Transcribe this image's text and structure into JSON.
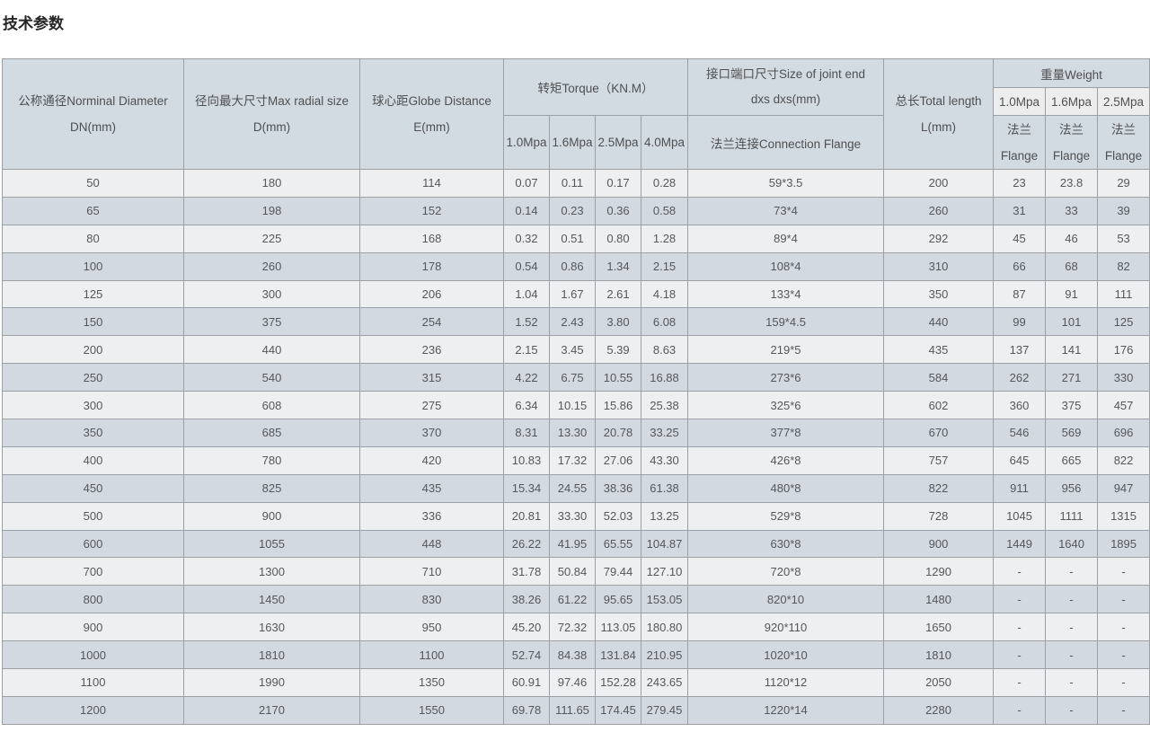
{
  "page": {
    "title": "技术参数"
  },
  "colors": {
    "header_bg": "#d3dbe2",
    "header_sub_light_bg": "#ededee",
    "row_odd_bg": "#eeeff0",
    "row_even_bg": "#d2d9e0",
    "border": "#9aa0a6",
    "text": "#55575a"
  },
  "table": {
    "headers": {
      "dn": {
        "line1": "公称通径Norminal Diameter",
        "line2": "DN(mm)"
      },
      "d": {
        "line1": "径向最大尺寸Max radial size",
        "line2": "D(mm)"
      },
      "e": {
        "line1": "球心距Globe Distance",
        "line2": "E(mm)"
      },
      "torque": {
        "title": "转矩Torque（KN.M）",
        "subs": [
          "1.0Mpa",
          "1.6Mpa",
          "2.5Mpa",
          "4.0Mpa"
        ]
      },
      "joint": {
        "line1": "接口端口尺寸Size of joint end",
        "line2": "dxs dxs(mm)",
        "sub": "法兰连接Connection Flange"
      },
      "length": {
        "line1": "总长Total length",
        "line2": "L(mm)"
      },
      "weight": {
        "title": "重量Weight",
        "subs": [
          "1.0Mpa",
          "1.6Mpa",
          "2.5Mpa"
        ],
        "flange": {
          "line1": "法兰",
          "line2": "Flange"
        }
      }
    },
    "rows": [
      [
        "50",
        "180",
        "114",
        "0.07",
        "0.11",
        "0.17",
        "0.28",
        "59*3.5",
        "200",
        "23",
        "23.8",
        "29"
      ],
      [
        "65",
        "198",
        "152",
        "0.14",
        "0.23",
        "0.36",
        "0.58",
        "73*4",
        "260",
        "31",
        "33",
        "39"
      ],
      [
        "80",
        "225",
        "168",
        "0.32",
        "0.51",
        "0.80",
        "1.28",
        "89*4",
        "292",
        "45",
        "46",
        "53"
      ],
      [
        "100",
        "260",
        "178",
        "0.54",
        "0.86",
        "1.34",
        "2.15",
        "108*4",
        "310",
        "66",
        "68",
        "82"
      ],
      [
        "125",
        "300",
        "206",
        "1.04",
        "1.67",
        "2.61",
        "4.18",
        "133*4",
        "350",
        "87",
        "91",
        "111"
      ],
      [
        "150",
        "375",
        "254",
        "1.52",
        "2.43",
        "3.80",
        "6.08",
        "159*4.5",
        "440",
        "99",
        "101",
        "125"
      ],
      [
        "200",
        "440",
        "236",
        "2.15",
        "3.45",
        "5.39",
        "8.63",
        "219*5",
        "435",
        "137",
        "141",
        "176"
      ],
      [
        "250",
        "540",
        "315",
        "4.22",
        "6.75",
        "10.55",
        "16.88",
        "273*6",
        "584",
        "262",
        "271",
        "330"
      ],
      [
        "300",
        "608",
        "275",
        "6.34",
        "10.15",
        "15.86",
        "25.38",
        "325*6",
        "602",
        "360",
        "375",
        "457"
      ],
      [
        "350",
        "685",
        "370",
        "8.31",
        "13.30",
        "20.78",
        "33.25",
        "377*8",
        "670",
        "546",
        "569",
        "696"
      ],
      [
        "400",
        "780",
        "420",
        "10.83",
        "17.32",
        "27.06",
        "43.30",
        "426*8",
        "757",
        "645",
        "665",
        "822"
      ],
      [
        "450",
        "825",
        "435",
        "15.34",
        "24.55",
        "38.36",
        "61.38",
        "480*8",
        "822",
        "911",
        "956",
        "947"
      ],
      [
        "500",
        "900",
        "336",
        "20.81",
        "33.30",
        "52.03",
        "13.25",
        "529*8",
        "728",
        "1045",
        "1111",
        "1315"
      ],
      [
        "600",
        "1055",
        "448",
        "26.22",
        "41.95",
        "65.55",
        "104.87",
        "630*8",
        "900",
        "1449",
        "1640",
        "1895"
      ],
      [
        "700",
        "1300",
        "710",
        "31.78",
        "50.84",
        "79.44",
        "127.10",
        "720*8",
        "1290",
        "-",
        "-",
        "-"
      ],
      [
        "800",
        "1450",
        "830",
        "38.26",
        "61.22",
        "95.65",
        "153.05",
        "820*10",
        "1480",
        "-",
        "-",
        "-"
      ],
      [
        "900",
        "1630",
        "950",
        "45.20",
        "72.32",
        "113.05",
        "180.80",
        "920*110",
        "1650",
        "-",
        "-",
        "-"
      ],
      [
        "1000",
        "1810",
        "1100",
        "52.74",
        "84.38",
        "131.84",
        "210.95",
        "1020*10",
        "1810",
        "-",
        "-",
        "-"
      ],
      [
        "1100",
        "1990",
        "1350",
        "60.91",
        "97.46",
        "152.28",
        "243.65",
        "1120*12",
        "2050",
        "-",
        "-",
        "-"
      ],
      [
        "1200",
        "2170",
        "1550",
        "69.78",
        "111.65",
        "174.45",
        "279.45",
        "1220*14",
        "2280",
        "-",
        "-",
        "-"
      ]
    ]
  }
}
